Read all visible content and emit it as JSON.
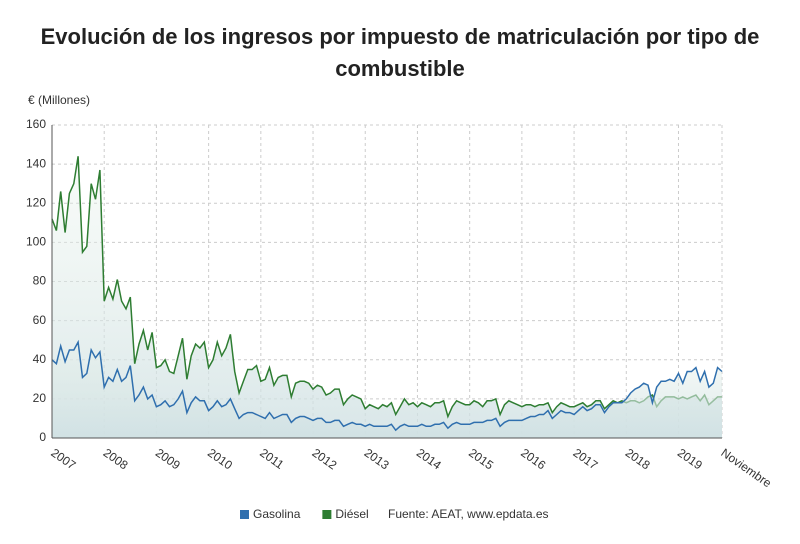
{
  "chart_data": {
    "type": "line",
    "title_lines": [
      "Evolución de los ingresos por impuesto de matriculación por tipo de",
      "combustible"
    ],
    "y_label": "€ (Millones)",
    "source": "Fuente: AEAT, www.epdata.es",
    "categories": [
      "2007",
      null,
      null,
      null,
      null,
      null,
      null,
      null,
      null,
      null,
      null,
      null,
      "2008",
      null,
      null,
      null,
      null,
      null,
      null,
      null,
      null,
      null,
      null,
      null,
      "2009",
      null,
      null,
      null,
      null,
      null,
      null,
      null,
      null,
      null,
      null,
      null,
      "2010",
      null,
      null,
      null,
      null,
      null,
      null,
      null,
      null,
      null,
      null,
      null,
      "2011",
      null,
      null,
      null,
      null,
      null,
      null,
      null,
      null,
      null,
      null,
      null,
      "2012",
      null,
      null,
      null,
      null,
      null,
      null,
      null,
      null,
      null,
      null,
      null,
      "2013",
      null,
      null,
      null,
      null,
      null,
      null,
      null,
      null,
      null,
      null,
      null,
      "2014",
      null,
      null,
      null,
      null,
      null,
      null,
      null,
      null,
      null,
      null,
      null,
      "2015",
      null,
      null,
      null,
      null,
      null,
      null,
      null,
      null,
      null,
      null,
      null,
      "2016",
      null,
      null,
      null,
      null,
      null,
      null,
      null,
      null,
      null,
      null,
      null,
      "2017",
      null,
      null,
      null,
      null,
      null,
      null,
      null,
      null,
      null,
      null,
      null,
      "2018",
      null,
      null,
      null,
      null,
      null,
      null,
      null,
      null,
      null,
      null,
      null,
      "2019",
      null,
      null,
      null,
      null,
      null,
      null,
      null,
      null,
      null,
      "Noviembre"
    ],
    "series": [
      {
        "name": "Gasolina",
        "color": "#2f6fae",
        "values": [
          40,
          38,
          47,
          39,
          45,
          45,
          49,
          31,
          33,
          45,
          41,
          44,
          26,
          31,
          29,
          35,
          29,
          31,
          37,
          19,
          22,
          26,
          20,
          22,
          16,
          17,
          19,
          16,
          17,
          20,
          24,
          13,
          18,
          21,
          19,
          19,
          14,
          16,
          19,
          16,
          17,
          20,
          15,
          10,
          12,
          13,
          13,
          12,
          11,
          10,
          13,
          10,
          11,
          12,
          12,
          8,
          10,
          11,
          11,
          10,
          9,
          10,
          10,
          8,
          8,
          9,
          9,
          6,
          7,
          8,
          7,
          7,
          6,
          7,
          6,
          6,
          6,
          6,
          7,
          4,
          6,
          7,
          6,
          6,
          6,
          7,
          6,
          6,
          7,
          7,
          8,
          5,
          7,
          8,
          7,
          7,
          7,
          8,
          8,
          8,
          9,
          9,
          10,
          6,
          8,
          9,
          9,
          9,
          9,
          10,
          11,
          11,
          12,
          12,
          14,
          10,
          12,
          14,
          13,
          13,
          12,
          14,
          16,
          14,
          15,
          17,
          17,
          13,
          16,
          18,
          18,
          18,
          20,
          23,
          25,
          26,
          28,
          27,
          18,
          26,
          29,
          29,
          30,
          29,
          33,
          28,
          34,
          34,
          36,
          29,
          34,
          26,
          28,
          36,
          34
        ]
      },
      {
        "name": "Diésel",
        "color": "#2e7d32",
        "values": [
          112,
          106,
          126,
          105,
          125,
          130,
          144,
          95,
          98,
          130,
          122,
          137,
          70,
          77,
          71,
          81,
          70,
          66,
          72,
          38,
          48,
          55,
          45,
          54,
          36,
          37,
          40,
          34,
          33,
          42,
          51,
          30,
          42,
          48,
          46,
          49,
          36,
          40,
          49,
          42,
          46,
          53,
          34,
          23,
          29,
          35,
          35,
          37,
          29,
          30,
          36,
          27,
          31,
          32,
          32,
          21,
          28,
          29,
          29,
          28,
          25,
          27,
          26,
          22,
          23,
          25,
          25,
          17,
          20,
          22,
          21,
          20,
          15,
          17,
          16,
          15,
          17,
          16,
          18,
          12,
          16,
          20,
          17,
          18,
          16,
          18,
          17,
          16,
          18,
          18,
          19,
          11,
          16,
          19,
          18,
          17,
          17,
          19,
          18,
          16,
          19,
          19,
          20,
          12,
          17,
          19,
          18,
          17,
          16,
          17,
          17,
          16,
          17,
          17,
          18,
          13,
          16,
          18,
          17,
          16,
          16,
          17,
          18,
          16,
          17,
          19,
          19,
          15,
          17,
          19,
          18,
          19,
          18,
          19,
          19,
          18,
          19,
          21,
          22,
          16,
          19,
          21,
          21,
          21,
          20,
          21,
          20,
          21,
          22,
          19,
          22,
          17,
          19,
          21,
          21
        ]
      }
    ],
    "ylim": [
      0,
      160
    ],
    "yticks": [
      0,
      20,
      40,
      60,
      80,
      100,
      120,
      140,
      160
    ],
    "grid": true
  }
}
